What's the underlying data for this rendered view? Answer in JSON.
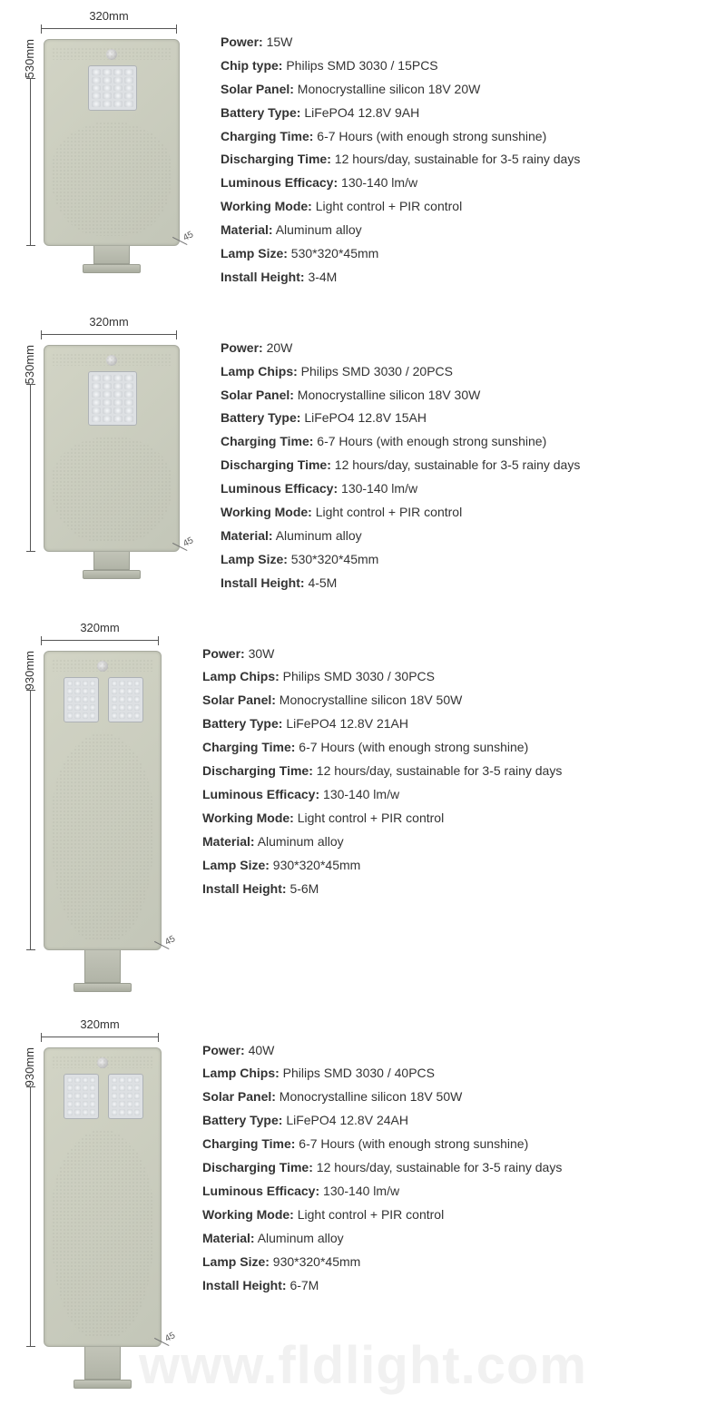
{
  "watermark": "www.fldlight.com",
  "products": [
    {
      "diagram": {
        "width_label": "320mm",
        "height_label": "530mm",
        "depth_label": "45",
        "body_w": 150,
        "body_h": 228,
        "bracket_h": 22,
        "led_panels": 1,
        "led_rows": 5
      },
      "specs": [
        {
          "label": "Power:",
          "value": " 15W"
        },
        {
          "label": "Chip type:",
          "value": " Philips SMD 3030 / 15PCS"
        },
        {
          "label": "Solar Panel:",
          "value": " Monocrystalline silicon 18V 20W"
        },
        {
          "label": "Battery Type:",
          "value": " LiFePO4 12.8V 9AH"
        },
        {
          "label": "Charging Time:",
          "value": " 6-7 Hours (with enough strong sunshine)"
        },
        {
          "label": "Discharging Time:",
          "value": " 12 hours/day, sustainable for 3-5 rainy days"
        },
        {
          "label": "Luminous Efficacy:",
          "value": " 130-140 lm/w"
        },
        {
          "label": "Working Mode:",
          "value": " Light control + PIR control"
        },
        {
          "label": "Material:",
          "value": " Aluminum alloy"
        },
        {
          "label": "Lamp Size:",
          "value": " 530*320*45mm"
        },
        {
          "label": "Install Height:",
          "value": " 3-4M"
        }
      ]
    },
    {
      "diagram": {
        "width_label": "320mm",
        "height_label": "530mm",
        "depth_label": "45",
        "body_w": 150,
        "body_h": 228,
        "bracket_h": 22,
        "led_panels": 1,
        "led_rows": 6
      },
      "specs": [
        {
          "label": "Power:",
          "value": " 20W"
        },
        {
          "label": "Lamp Chips:",
          "value": " Philips SMD 3030 / 20PCS"
        },
        {
          "label": "Solar Panel:",
          "value": " Monocrystalline silicon 18V 30W"
        },
        {
          "label": "Battery Type:",
          "value": " LiFePO4 12.8V 15AH"
        },
        {
          "label": "Charging Time:",
          "value": " 6-7 Hours (with enough strong sunshine)"
        },
        {
          "label": "Discharging Time:",
          "value": " 12 hours/day, sustainable for 3-5 rainy days"
        },
        {
          "label": "Luminous Efficacy:",
          "value": " 130-140 lm/w"
        },
        {
          "label": "Working Mode:",
          "value": " Light control + PIR control"
        },
        {
          "label": "Material:",
          "value": " Aluminum alloy"
        },
        {
          "label": "Lamp Size:",
          "value": " 530*320*45mm"
        },
        {
          "label": "Install Height:",
          "value": " 4-5M"
        }
      ]
    },
    {
      "diagram": {
        "width_label": "320mm",
        "height_label": "930mm",
        "depth_label": "45",
        "body_w": 130,
        "body_h": 330,
        "bracket_h": 38,
        "led_panels": 2,
        "led_rows": 5
      },
      "specs": [
        {
          "label": "Power:",
          "value": " 30W"
        },
        {
          "label": "Lamp Chips:",
          "value": " Philips SMD 3030 / 30PCS"
        },
        {
          "label": "Solar Panel:",
          "value": " Monocrystalline silicon 18V 50W"
        },
        {
          "label": "Battery Type:",
          "value": " LiFePO4 12.8V 21AH"
        },
        {
          "label": "Charging Time:",
          "value": " 6-7 Hours (with enough strong sunshine)"
        },
        {
          "label": "Discharging Time:",
          "value": " 12 hours/day, sustainable for 3-5 rainy days"
        },
        {
          "label": "Luminous Efficacy:",
          "value": " 130-140 lm/w"
        },
        {
          "label": "Working Mode:",
          "value": " Light control + PIR control"
        },
        {
          "label": "Material:",
          "value": " Aluminum alloy"
        },
        {
          "label": "Lamp Size:",
          "value": " 930*320*45mm"
        },
        {
          "label": "Install Height:",
          "value": " 5-6M"
        }
      ]
    },
    {
      "diagram": {
        "width_label": "320mm",
        "height_label": "930mm",
        "depth_label": "45",
        "body_w": 130,
        "body_h": 330,
        "bracket_h": 38,
        "led_panels": 2,
        "led_rows": 5
      },
      "specs": [
        {
          "label": "Power:",
          "value": " 40W"
        },
        {
          "label": "Lamp Chips:",
          "value": " Philips SMD 3030 / 40PCS"
        },
        {
          "label": "Solar Panel:",
          "value": " Monocrystalline silicon 18V 50W"
        },
        {
          "label": "Battery Type:",
          "value": " LiFePO4 12.8V 24AH"
        },
        {
          "label": "Charging Time:",
          "value": " 6-7 Hours (with enough strong sunshine)"
        },
        {
          "label": "Discharging Time:",
          "value": " 12 hours/day, sustainable for 3-5 rainy days"
        },
        {
          "label": "Luminous Efficacy:",
          "value": " 130-140 lm/w"
        },
        {
          "label": "Working Mode:",
          "value": " Light control + PIR control"
        },
        {
          "label": "Material:",
          "value": " Aluminum alloy"
        },
        {
          "label": "Lamp Size:",
          "value": " 930*320*45mm"
        },
        {
          "label": "Install Height:",
          "value": " 6-7M"
        }
      ]
    }
  ]
}
